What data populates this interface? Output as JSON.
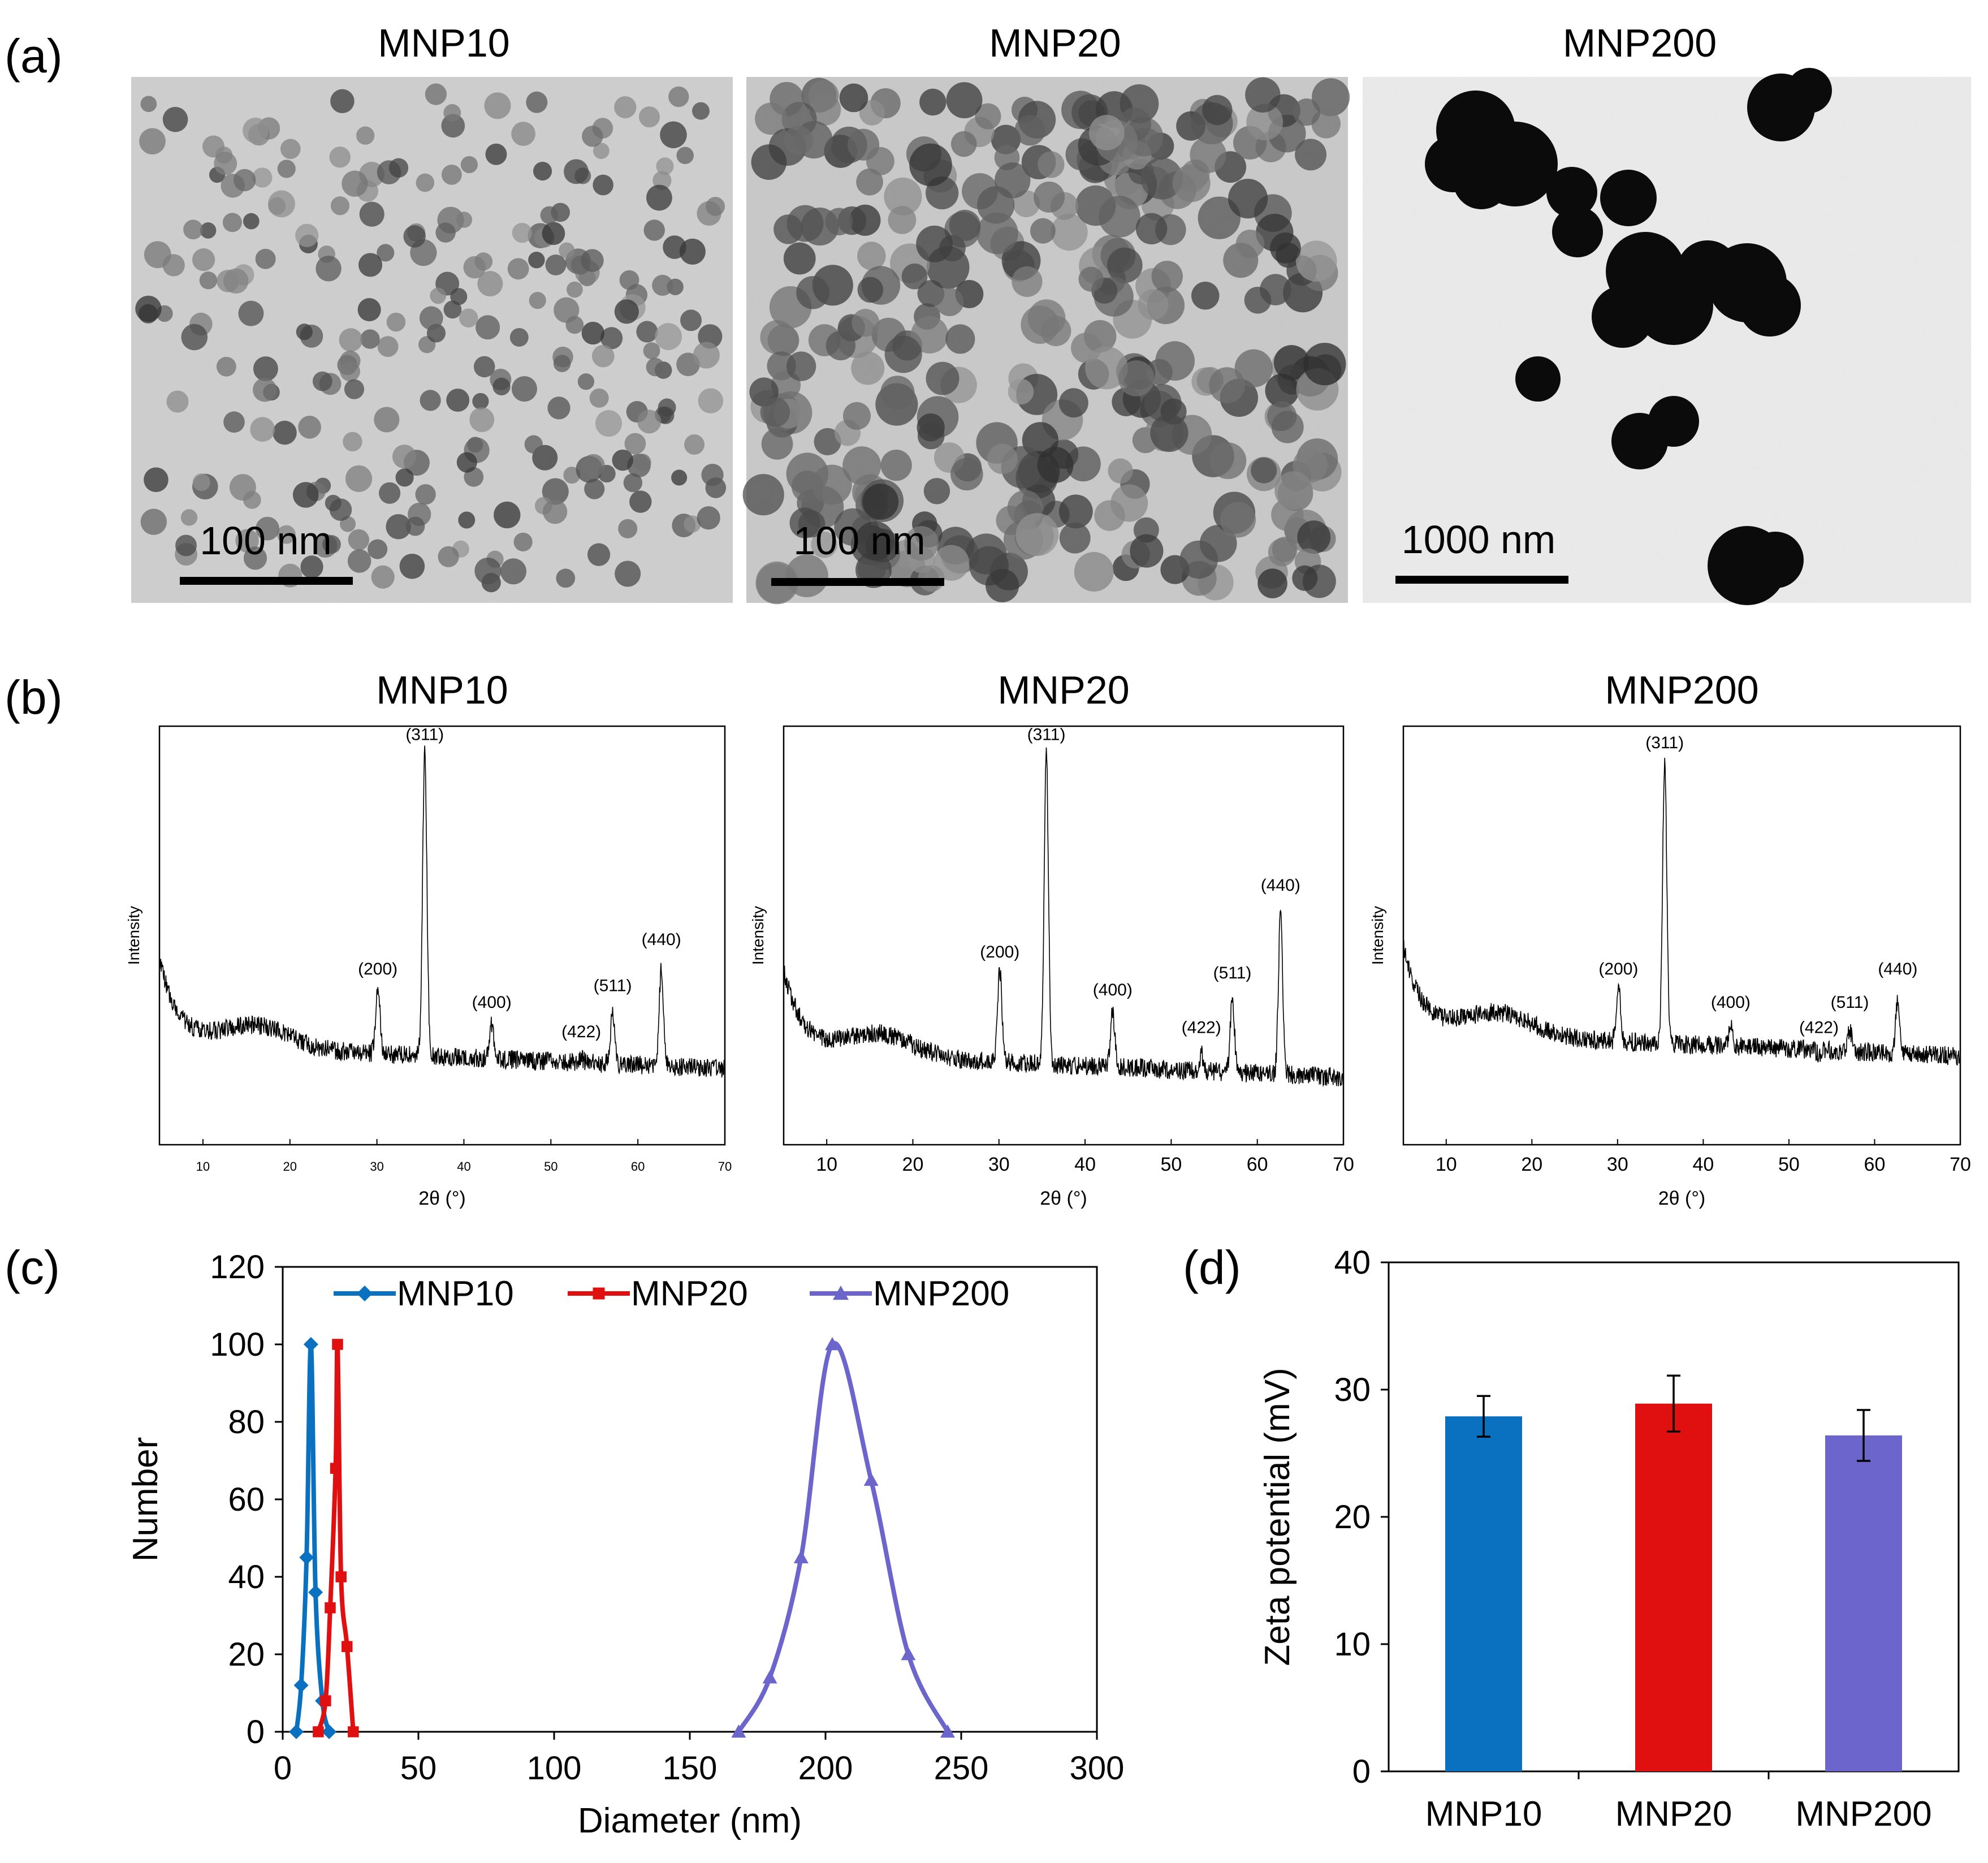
{
  "panel_letters": {
    "a": "(a)",
    "b": "(b)",
    "c": "(c)",
    "d": "(d)"
  },
  "samples": [
    "MNP10",
    "MNP20",
    "MNP200"
  ],
  "colors": {
    "MNP10": "#0A70C0",
    "MNP20": "#E01010",
    "MNP200": "#6C65CC"
  },
  "tem": [
    {
      "title": "MNP10",
      "scale_bar": "100 nm"
    },
    {
      "title": "MNP20",
      "scale_bar": "100 nm"
    },
    {
      "title": "MNP200",
      "scale_bar": "1000 nm"
    }
  ],
  "chart_data": [
    {
      "id": "xrd-MNP10",
      "panel": "b",
      "type": "line",
      "title": "MNP10",
      "xlabel": "2θ (°)",
      "ylabel": "Intensity",
      "xlim": [
        5,
        70
      ],
      "xticks": [
        "10",
        "20",
        "30",
        "40",
        "50",
        "60",
        "70"
      ],
      "baseline": 0.22,
      "peaks": [
        {
          "label": "(200)",
          "x": 30.1,
          "height": 0.38
        },
        {
          "label": "(311)",
          "x": 35.5,
          "height": 0.94
        },
        {
          "label": "(400)",
          "x": 43.2,
          "height": 0.3
        },
        {
          "label": "(422)",
          "x": 53.5,
          "height": 0.23
        },
        {
          "label": "(511)",
          "x": 57.1,
          "height": 0.34
        },
        {
          "label": "(440)",
          "x": 62.7,
          "height": 0.45
        }
      ]
    },
    {
      "id": "xrd-MNP20",
      "panel": "b",
      "type": "line",
      "title": "MNP20",
      "xlabel": "2θ (°)",
      "ylabel": "Intensity",
      "xlim": [
        5,
        70
      ],
      "xticks": [
        "10",
        "20",
        "30",
        "40",
        "50",
        "60",
        "70"
      ],
      "baseline": 0.2,
      "peaks": [
        {
          "label": "(200)",
          "x": 30.1,
          "height": 0.42
        },
        {
          "label": "(311)",
          "x": 35.5,
          "height": 0.94
        },
        {
          "label": "(400)",
          "x": 43.2,
          "height": 0.33
        },
        {
          "label": "(422)",
          "x": 53.5,
          "height": 0.24
        },
        {
          "label": "(511)",
          "x": 57.1,
          "height": 0.37
        },
        {
          "label": "(440)",
          "x": 62.7,
          "height": 0.58
        }
      ]
    },
    {
      "id": "xrd-MNP200",
      "panel": "b",
      "type": "line",
      "title": "MNP200",
      "xlabel": "2θ (°)",
      "ylabel": "Intensity",
      "xlim": [
        5,
        70
      ],
      "xticks": [
        "10",
        "20",
        "30",
        "40",
        "50",
        "60",
        "70"
      ],
      "baseline": 0.25,
      "peaks": [
        {
          "label": "(200)",
          "x": 30.1,
          "height": 0.38
        },
        {
          "label": "(311)",
          "x": 35.5,
          "height": 0.92
        },
        {
          "label": "(400)",
          "x": 43.2,
          "height": 0.3
        },
        {
          "label": "(422)",
          "x": 53.5,
          "height": 0.24
        },
        {
          "label": "(511)",
          "x": 57.1,
          "height": 0.3
        },
        {
          "label": "(440)",
          "x": 62.7,
          "height": 0.38
        }
      ]
    },
    {
      "id": "size-distribution",
      "panel": "c",
      "type": "line",
      "xlabel": "Diameter (nm)",
      "ylabel": "Number",
      "xlim": [
        0,
        300
      ],
      "ylim": [
        0,
        120
      ],
      "xticks": [
        "0",
        "50",
        "100",
        "150",
        "200",
        "250",
        "300"
      ],
      "yticks": [
        "0",
        "20",
        "40",
        "60",
        "80",
        "100",
        "120"
      ],
      "legend_position": "top",
      "series": [
        {
          "name": "MNP10",
          "marker": "diamond",
          "x": [
            5,
            6.8,
            8.8,
            10.4,
            12.1,
            14.6,
            17.1
          ],
          "y": [
            0,
            12,
            45,
            100,
            36,
            8,
            0
          ]
        },
        {
          "name": "MNP20",
          "marker": "square",
          "x": [
            13.1,
            15.8,
            17.5,
            19.5,
            20.2,
            21.5,
            23.7,
            26
          ],
          "y": [
            0,
            8,
            32,
            68,
            100,
            40,
            22,
            0
          ]
        },
        {
          "name": "MNP200",
          "marker": "triangle",
          "x": [
            168,
            179.5,
            191,
            202.5,
            216.8,
            230.5,
            245
          ],
          "y": [
            0,
            14,
            45,
            100,
            65,
            20,
            0
          ]
        }
      ]
    },
    {
      "id": "zeta-potential",
      "panel": "d",
      "type": "bar",
      "ylabel": "Zeta potential (mV)",
      "ylim": [
        0,
        40
      ],
      "yticks": [
        "0",
        "10",
        "20",
        "30",
        "40"
      ],
      "categories": [
        "MNP10",
        "MNP20",
        "MNP200"
      ],
      "values": [
        27.9,
        28.9,
        26.4
      ],
      "errors": [
        1.6,
        2.2,
        2.0
      ]
    }
  ]
}
